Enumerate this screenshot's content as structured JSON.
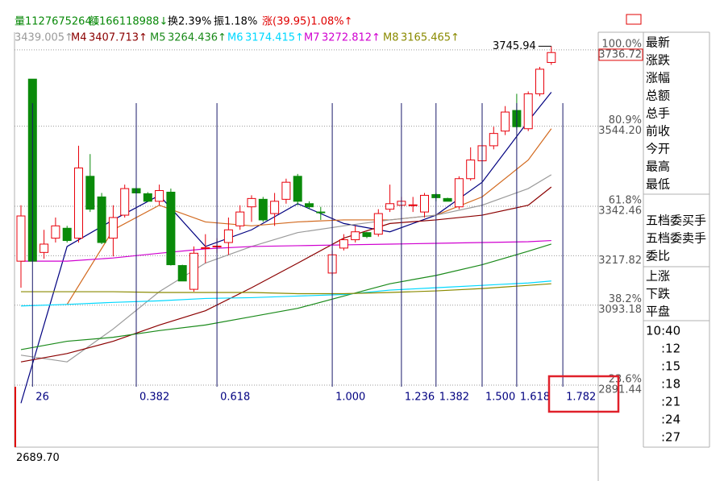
{
  "header": {
    "stats": [
      "量1127675264↓",
      "额166118988↓",
      "换2.39%",
      "振1.18%",
      "涨(39.95)1.08%↑"
    ],
    "stat_colors": [
      "#0a8a0a",
      "#0a8a0a",
      "#000000",
      "#000000",
      "#e00000"
    ]
  },
  "side_panel": {
    "groups": [
      [
        "最新",
        "涨跌",
        "涨幅",
        "总额",
        "总手",
        "前收",
        "今开",
        "最高",
        "最低"
      ],
      [
        "五档委买手",
        "五档委卖手",
        "委比"
      ],
      [
        "上涨",
        "下跌",
        "平盘"
      ],
      [
        "10:40",
        ":12",
        ":15",
        ":18",
        ":21",
        ":24",
        ":27"
      ]
    ]
  },
  "chart_data": {
    "type": "candlestick",
    "up_color": "#e8000b",
    "down_color": "#0a8a0a",
    "open": [
      3204,
      3663,
      3226,
      3262,
      3287,
      3262,
      3418,
      3366,
      3262,
      3320,
      3387,
      3374,
      3355,
      3378,
      3193,
      3133,
      3237,
      3241,
      3251,
      3293,
      3341,
      3360,
      3324,
      3360,
      3418,
      3349,
      3328,
      3174,
      3237,
      3258,
      3276,
      3272,
      3335,
      3345,
      3345,
      3328,
      3372,
      3362,
      3341,
      3412,
      3457,
      3495,
      3532,
      3584,
      3538,
      3626,
      3705
    ],
    "high": [
      3345,
      3663,
      3283,
      3314,
      3293,
      3495,
      3474,
      3376,
      3345,
      3397,
      3387,
      3378,
      3397,
      3387,
      3195,
      3241,
      3272,
      3262,
      3314,
      3345,
      3370,
      3366,
      3376,
      3412,
      3424,
      3355,
      3341,
      3231,
      3272,
      3293,
      3278,
      3335,
      3397,
      3366,
      3366,
      3376,
      3376,
      3364,
      3418,
      3491,
      3511,
      3543,
      3595,
      3626,
      3632,
      3694,
      3745.94
    ],
    "low": [
      3137,
      3204,
      3210,
      3251,
      3251,
      3251,
      3328,
      3247,
      3216,
      3314,
      3376,
      3355,
      3345,
      3193,
      3154,
      3127,
      3199,
      3224,
      3220,
      3283,
      3303,
      3303,
      3293,
      3349,
      3345,
      3335,
      3308,
      3168,
      3231,
      3251,
      3262,
      3266,
      3328,
      3335,
      3328,
      3314,
      3355,
      3355,
      3335,
      3407,
      3449,
      3486,
      3522,
      3536,
      3532,
      3620,
      3699
    ],
    "close": [
      3318,
      3204,
      3247,
      3293,
      3256,
      3439,
      3335,
      3251,
      3314,
      3387,
      3376,
      3355,
      3382,
      3195,
      3154,
      3224,
      3238,
      3242,
      3283,
      3328,
      3362,
      3308,
      3355,
      3403,
      3355,
      3341,
      3327,
      3220,
      3258,
      3278,
      3266,
      3324,
      3349,
      3355,
      3346,
      3370,
      3364,
      3355,
      3412,
      3459,
      3495,
      3526,
      3580,
      3543,
      3626,
      3688,
      3730
    ],
    "series": [
      {
        "color": "#000080",
        "x": [
          0,
          4,
          8,
          12,
          16,
          20,
          24,
          28,
          32,
          36,
          40,
          44,
          46
        ],
        "values": [
          2846,
          3241,
          3308,
          3370,
          3241,
          3283,
          3349,
          3299,
          3278,
          3320,
          3403,
          3557,
          3630
        ]
      },
      {
        "color": "#d2691e",
        "x": [
          0,
          4,
          8,
          12,
          16,
          20,
          24,
          28,
          32,
          36,
          40,
          44,
          46
        ],
        "values": [
          null,
          3095,
          3283,
          3345,
          3303,
          3293,
          3303,
          3308,
          3308,
          3320,
          3366,
          3459,
          3538
        ]
      },
      {
        "color": "#9a9a9a",
        "value_label": "3439.005↑",
        "x": [
          0,
          4,
          8,
          12,
          16,
          20,
          24,
          28,
          32,
          36,
          40,
          44,
          46
        ],
        "values": [
          2967,
          2950,
          3033,
          3127,
          3199,
          3241,
          3276,
          3293,
          3308,
          3320,
          3345,
          3387,
          3422
        ]
      },
      {
        "name": "M4",
        "value_label": "3407.713↑",
        "color": "#8b0000",
        "x": [
          0,
          4,
          8,
          12,
          16,
          20,
          24,
          28,
          32,
          36,
          40,
          44,
          46
        ],
        "values": [
          2950,
          2971,
          3002,
          3043,
          3079,
          3137,
          3199,
          3262,
          3299,
          3308,
          3320,
          3345,
          3391
        ]
      },
      {
        "name": "M5",
        "value_label": "3264.436↑",
        "color": "#1a8a1a",
        "x": [
          0,
          4,
          8,
          12,
          16,
          20,
          24,
          28,
          32,
          36,
          40,
          44,
          46
        ],
        "values": [
          2981,
          3002,
          3012,
          3029,
          3043,
          3064,
          3085,
          3116,
          3147,
          3168,
          3195,
          3229,
          3247
        ]
      },
      {
        "name": "M6",
        "value_label": "3174.415↑",
        "color": "#00d8ff",
        "x": [
          0,
          4,
          8,
          12,
          16,
          20,
          24,
          28,
          32,
          36,
          40,
          44,
          46
        ],
        "values": [
          3091,
          3095,
          3100,
          3104,
          3110,
          3112,
          3116,
          3120,
          3131,
          3137,
          3143,
          3149,
          3154
        ]
      },
      {
        "name": "M7",
        "value_label": "3272.812↑",
        "color": "#d000d0",
        "x": [
          0,
          4,
          8,
          12,
          16,
          20,
          24,
          28,
          32,
          36,
          40,
          44,
          46
        ],
        "values": [
          3204,
          3204,
          3212,
          3224,
          3235,
          3241,
          3243,
          3245,
          3247,
          3249,
          3251,
          3253,
          3256
        ]
      },
      {
        "name": "M8",
        "value_label": "3165.465↑",
        "color": "#8a8a00",
        "x": [
          0,
          4,
          8,
          12,
          16,
          20,
          24,
          28,
          32,
          36,
          40,
          44,
          46
        ],
        "values": [
          3127,
          3127,
          3127,
          3125,
          3125,
          3125,
          3122,
          3122,
          3125,
          3129,
          3135,
          3143,
          3147
        ]
      }
    ],
    "ylim": [
      2689.7,
      3765
    ],
    "yticks": [
      3736.72,
      {
        "value": 3544.2,
        "label": "3544.20"
      },
      3342.46,
      3217.82,
      3093.18,
      2891.44,
      {
        "value": 2689.7,
        "label": "2689.70"
      }
    ],
    "level_labels": [
      "100.0%",
      "80.9%",
      "61.8%",
      null,
      "38.2%",
      "23.6%",
      null
    ],
    "grid": true,
    "fib_lines": {
      "x": [
        1,
        10,
        17,
        27,
        33,
        36,
        40,
        43,
        47
      ],
      "labels": [
        "26",
        "0.382",
        "0.618",
        "1.000",
        "1.236",
        "1.382",
        "1.500",
        "1.618",
        "1.782"
      ]
    }
  }
}
